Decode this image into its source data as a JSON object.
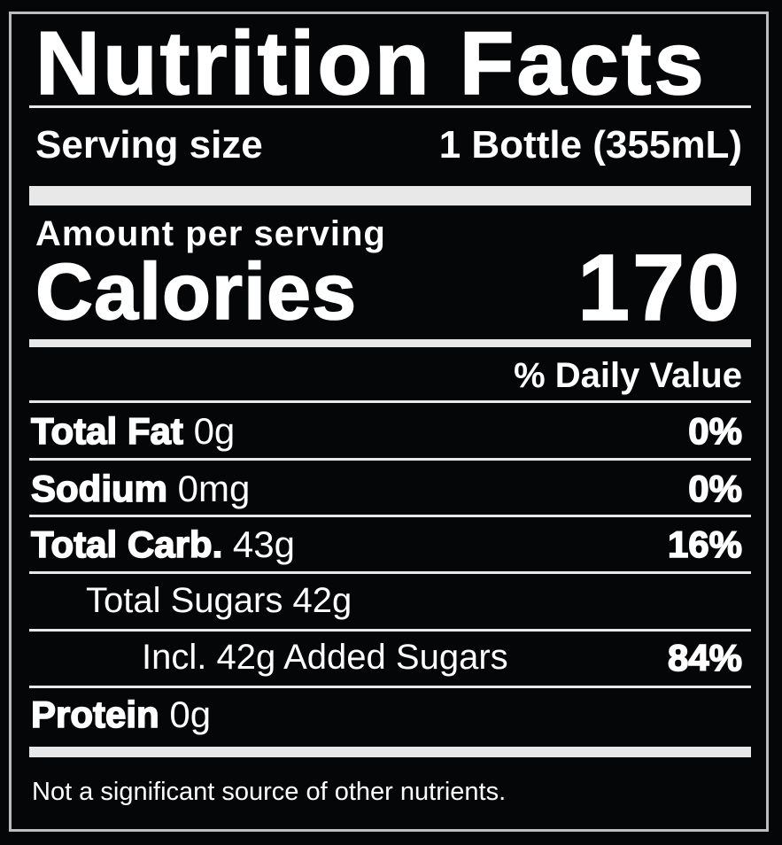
{
  "title": "Nutrition Facts",
  "serving": {
    "label": "Serving size",
    "value": "1 Bottle (355mL)"
  },
  "amount_per_serving": "Amount per serving",
  "calories": {
    "label": "Calories",
    "value": "170"
  },
  "daily_value_header": "% Daily Value",
  "nutrients": [
    {
      "name": "Total Fat",
      "amount": "0g",
      "dv": "0%"
    },
    {
      "name": "Sodium",
      "amount": "0mg",
      "dv": "0%"
    },
    {
      "name": "Total Carb.",
      "amount": "43g",
      "dv": "16%"
    },
    {
      "name": "Total Sugars 42g",
      "amount": "",
      "dv": ""
    },
    {
      "name": "Incl. 42g Added Sugars",
      "amount": "",
      "dv": "84%"
    },
    {
      "name": "Protein",
      "amount": "0g",
      "dv": ""
    }
  ],
  "footnote": "Not a significant source of other nutrients.",
  "colors": {
    "background": "#040608",
    "text": "#ffffff",
    "border": "#bdbdbd"
  }
}
